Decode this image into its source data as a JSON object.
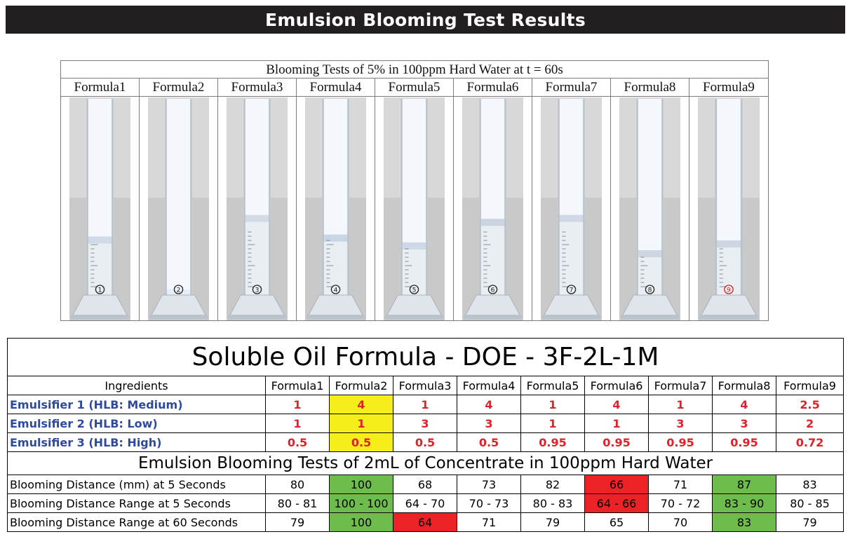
{
  "banner": {
    "title": "Emulsion Blooming Test Results"
  },
  "photo_panel": {
    "title": "Blooming Tests of 5% in 100ppm Hard Water at t = 60s",
    "formulas": [
      {
        "label": "Formula1",
        "number": "1",
        "bloom_fraction": 0.73,
        "tint": "#c9d6e6"
      },
      {
        "label": "Formula2",
        "number": "2",
        "bloom_fraction": 1.0,
        "tint": "#e4ebf3"
      },
      {
        "label": "Formula3",
        "number": "3",
        "bloom_fraction": 0.62,
        "tint": "#cbd6e2"
      },
      {
        "label": "Formula4",
        "number": "4",
        "bloom_fraction": 0.72,
        "tint": "#bfd0e2"
      },
      {
        "label": "Formula5",
        "number": "5",
        "bloom_fraction": 0.76,
        "tint": "#c6d4e4"
      },
      {
        "label": "Formula6",
        "number": "6",
        "bloom_fraction": 0.64,
        "tint": "#c3cedb"
      },
      {
        "label": "Formula7",
        "number": "7",
        "bloom_fraction": 0.62,
        "tint": "#c9d4e0"
      },
      {
        "label": "Formula8",
        "number": "8",
        "bloom_fraction": 0.8,
        "tint": "#c5d1de"
      },
      {
        "label": "Formula9",
        "number": "9",
        "bloom_fraction": 0.75,
        "tint": "#c6d0dc"
      }
    ]
  },
  "doe": {
    "title": "Soluble Oil Formula - DOE - 3F-2L-1M",
    "ingredients_header": "Ingredients",
    "formula_headers": [
      "Formula1",
      "Formula2",
      "Formula3",
      "Formula4",
      "Formula5",
      "Formula6",
      "Formula7",
      "Formula8",
      "Formula9"
    ],
    "ingredients": [
      {
        "label": "Emulsifier 1 (HLB: Medium)",
        "values": [
          "1",
          "4",
          "1",
          "4",
          "1",
          "4",
          "1",
          "4",
          "2.5"
        ]
      },
      {
        "label": "Emulsifier 2 (HLB: Low)",
        "values": [
          "1",
          "1",
          "3",
          "3",
          "1",
          "1",
          "3",
          "3",
          "2"
        ]
      },
      {
        "label": "Emulsifier 3 (HLB: High)",
        "values": [
          "0.5",
          "0.5",
          "0.5",
          "0.5",
          "0.95",
          "0.95",
          "0.95",
          "0.95",
          "0.72"
        ]
      }
    ],
    "tests_title": "Emulsion Blooming Tests of 2mL of Concentrate in 100ppm Hard Water",
    "tests": [
      {
        "label": "Blooming Distance (mm) at 5 Seconds",
        "values": [
          "80",
          "100",
          "68",
          "73",
          "82",
          "66",
          "71",
          "87",
          "83"
        ],
        "highlights": [
          "",
          "green",
          "",
          "",
          "",
          "red",
          "",
          "green",
          ""
        ]
      },
      {
        "label": "Blooming Distance Range at 5 Seconds",
        "values": [
          "80 - 81",
          "100 - 100",
          "64 - 70",
          "70 - 73",
          "80 - 83",
          "64 - 66",
          "70 - 72",
          "83 - 90",
          "80 - 85"
        ],
        "highlights": [
          "",
          "green",
          "",
          "",
          "",
          "red",
          "",
          "green",
          ""
        ]
      },
      {
        "label": "Blooming Distance Range at 60 Seconds",
        "values": [
          "79",
          "100",
          "64",
          "71",
          "79",
          "65",
          "70",
          "83",
          "79"
        ],
        "highlights": [
          "",
          "green",
          "red",
          "",
          "",
          "",
          "",
          "green",
          ""
        ]
      }
    ],
    "highlight_colors": {
      "yellow": "#f6ee1a",
      "green": "#6ebc4b",
      "red": "#ec2226"
    }
  }
}
